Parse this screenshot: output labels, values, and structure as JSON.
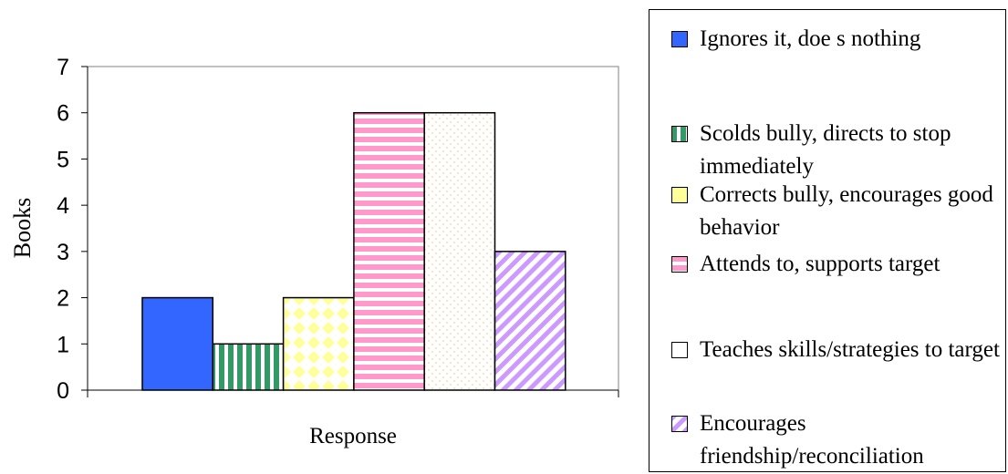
{
  "chart_data": {
    "type": "bar",
    "title": "",
    "xlabel": "Response",
    "ylabel": "Books",
    "ylim": [
      0,
      7
    ],
    "yticks": [
      "0",
      "1",
      "2",
      "3",
      "4",
      "5",
      "6",
      "7"
    ],
    "grid": false,
    "legend_position": "right",
    "series": [
      {
        "name": "Ignores it, doe s nothing",
        "value": 2,
        "color": "#3366ff",
        "pattern": "solid"
      },
      {
        "name": "Scolds bully, directs to stop immediately",
        "value": 1,
        "color": "#339966",
        "pattern": "vertical-stripes"
      },
      {
        "name": "Corrects bully, encourages good behavior",
        "value": 2,
        "color": "#ffff99",
        "pattern": "diamond-grid"
      },
      {
        "name": "Attends to, supports target",
        "value": 6,
        "color": "#ff99cc",
        "pattern": "horizontal-stripes"
      },
      {
        "name": "Teaches skills/strategies to target",
        "value": 6,
        "color": "#ffcc99",
        "pattern": "dots"
      },
      {
        "name": "Encourages friendship/reconciliation",
        "value": 3,
        "color": "#cc99ff",
        "pattern": "diagonal-stripes"
      }
    ]
  }
}
